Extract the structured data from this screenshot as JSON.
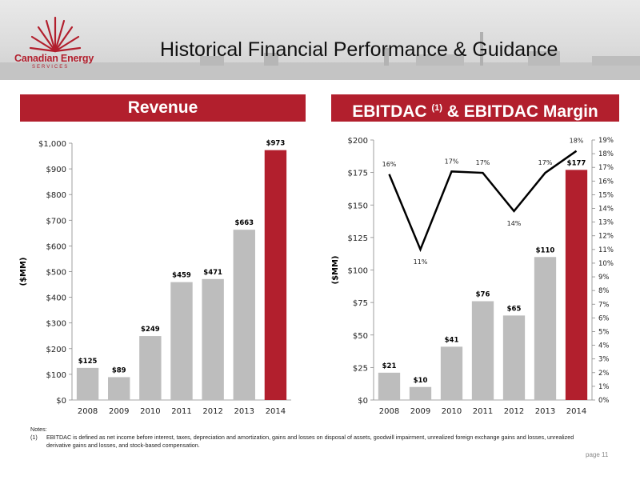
{
  "header": {
    "logo_name": "Canadian Energy",
    "logo_sub": "SERVICES",
    "title": "Historical Financial Performance & Guidance"
  },
  "panels": {
    "revenue_title": "Revenue",
    "ebitdac_title": "EBITDAC",
    "ebitdac_note_ref": "(1)",
    "ebitdac_title_suffix": "& EBITDAC Margin"
  },
  "colors": {
    "accent": "#b21f2d",
    "bar_gray": "#bdbdbd",
    "line": "#000000"
  },
  "chart_data": [
    {
      "type": "bar",
      "categories": [
        "2008",
        "2009",
        "2010",
        "2011",
        "2012",
        "2013",
        "2014"
      ],
      "values": [
        125,
        89,
        249,
        459,
        471,
        663,
        973
      ],
      "data_labels": [
        "$125",
        "$89",
        "$249",
        "$459",
        "$471",
        "$663",
        "$973"
      ],
      "highlight": [
        false,
        false,
        false,
        false,
        false,
        false,
        true
      ],
      "ylabel": "($MM)",
      "ylim": [
        0,
        1000
      ],
      "yticks": [
        0,
        100,
        200,
        300,
        400,
        500,
        600,
        700,
        800,
        900,
        1000
      ],
      "ytick_labels": [
        "$0",
        "$100",
        "$200",
        "$300",
        "$400",
        "$500",
        "$600",
        "$700",
        "$800",
        "$900",
        "$1,000"
      ],
      "grid": false
    },
    {
      "type": "bar",
      "categories": [
        "2008",
        "2009",
        "2010",
        "2011",
        "2012",
        "2013",
        "2014"
      ],
      "values": [
        21,
        10,
        41,
        76,
        65,
        110,
        177
      ],
      "data_labels": [
        "$21",
        "$10",
        "$41",
        "$76",
        "$65",
        "$110",
        "$177"
      ],
      "highlight": [
        false,
        false,
        false,
        false,
        false,
        false,
        true
      ],
      "ylabel": "($MM)",
      "ylim": [
        0,
        200
      ],
      "yticks": [
        0,
        25,
        50,
        75,
        100,
        125,
        150,
        175,
        200
      ],
      "ytick_labels": [
        "$0",
        "$25",
        "$50",
        "$75",
        "$100",
        "$125",
        "$150",
        "$175",
        "$200"
      ],
      "line": {
        "values": [
          16.5,
          11,
          16.7,
          16.6,
          13.8,
          16.6,
          18.2
        ],
        "data_labels": [
          "16%",
          "11%",
          "17%",
          "17%",
          "14%",
          "17%",
          "18%"
        ],
        "y2lim": [
          0,
          19
        ],
        "y2ticks": [
          0,
          1,
          2,
          3,
          4,
          5,
          6,
          7,
          8,
          9,
          10,
          11,
          12,
          13,
          14,
          15,
          16,
          17,
          18,
          19
        ],
        "y2tick_labels": [
          "0%",
          "1%",
          "2%",
          "3%",
          "4%",
          "5%",
          "6%",
          "7%",
          "8%",
          "9%",
          "10%",
          "11%",
          "12%",
          "13%",
          "14%",
          "15%",
          "16%",
          "17%",
          "18%",
          "19%"
        ]
      },
      "grid": false
    }
  ],
  "notes": {
    "heading": "Notes:",
    "ref": "(1)",
    "text": "EBITDAC is defined as net income before interest, taxes, depreciation and amortization, gains and losses on disposal of assets, goodwill impairment, unrealized foreign exchange gains and losses, unrealized derivative gains and losses, and stock-based compensation."
  },
  "footer": {
    "page": "page 11"
  }
}
